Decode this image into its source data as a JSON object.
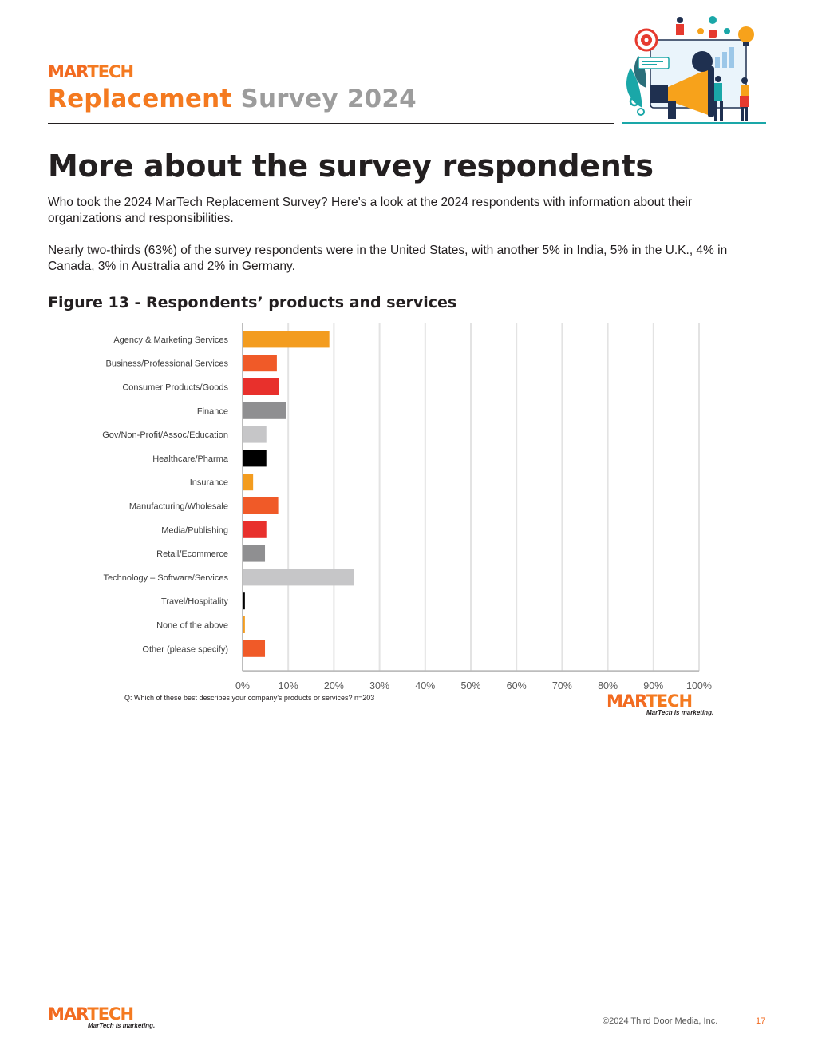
{
  "header": {
    "logo_mar": "MAR",
    "logo_tech": "TECH",
    "title_part1": "Replacement",
    "title_part2": "Survey 2024"
  },
  "page": {
    "heading": "More about the survey respondents",
    "paragraph1": "Who took the 2024 MarTech Replacement Survey? Here’s a look at the 2024 respondents with information about their organizations and responsibilities.",
    "paragraph2": "Nearly two-thirds (63%) of the survey respondents were in the United States, with another 5% in India, 5% in the U.K., 4% in Canada, 3% in Australia and 2% in Germany."
  },
  "figure": {
    "title": "Figure 13 - Respondents’ products and services",
    "question": "Q: Which of these best describes your company’s products or services? n=203"
  },
  "chart_data": {
    "type": "bar",
    "orientation": "horizontal",
    "title": "Figure 13 - Respondents’ products and services",
    "categories": [
      "Agency & Marketing Services",
      "Business/Professional Services",
      "Consumer Products/Goods",
      "Finance",
      "Gov/Non-Profit/Assoc/Education",
      "Healthcare/Pharma",
      "Insurance",
      "Manufacturing/Wholesale",
      "Media/Publishing",
      "Retail/Ecommerce",
      "Technology – Software/Services",
      "Travel/Hospitality",
      "None of the above",
      "Other (please specify)"
    ],
    "values": [
      19,
      7.5,
      8,
      9.5,
      5.2,
      5.2,
      2.3,
      7.8,
      5.2,
      4.9,
      24.4,
      0.5,
      0.5,
      4.9
    ],
    "colors": [
      "#f39c1f",
      "#f05a28",
      "#e8302c",
      "#8f8f91",
      "#c6c6c8",
      "#000000",
      "#f39c1f",
      "#f05a28",
      "#e8302c",
      "#8f8f91",
      "#c6c6c8",
      "#000000",
      "#f39c1f",
      "#f05a28"
    ],
    "x_ticks": [
      "0%",
      "10%",
      "20%",
      "30%",
      "40%",
      "50%",
      "60%",
      "70%",
      "80%",
      "90%",
      "100%"
    ],
    "xlim": [
      0,
      100
    ],
    "grid": true,
    "legend": "none"
  },
  "chart_logo": {
    "mar": "MAR",
    "tech": "TECH",
    "tagline": "MarTech is marketing."
  },
  "footer": {
    "logo_mar": "MAR",
    "logo_tech": "TECH",
    "tagline": "MarTech is marketing.",
    "copyright": "©2024 Third Door Media, Inc.",
    "page_number": "17"
  },
  "illustration": {
    "icon": "marketing-megaphone-illustration",
    "colors": {
      "orange": "#f7a21b",
      "teal": "#1aa7a8",
      "red": "#e63a2f",
      "navy": "#1f3050"
    }
  }
}
